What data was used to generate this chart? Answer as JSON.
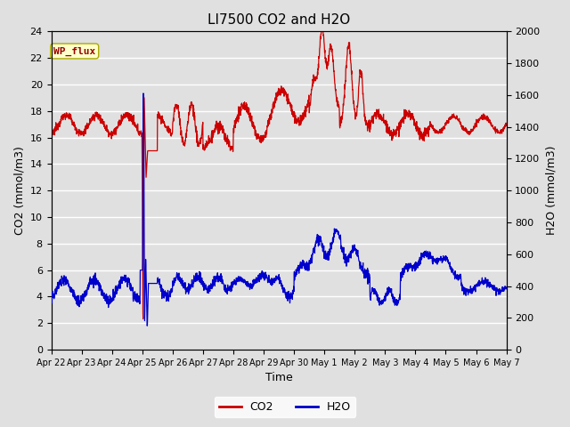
{
  "title": "LI7500 CO2 and H2O",
  "xlabel": "Time",
  "ylabel_left": "CO2 (mmol/m3)",
  "ylabel_right": "H2O (mmol/m3)",
  "ylim_left": [
    0,
    24
  ],
  "ylim_right": [
    0,
    2000
  ],
  "yticks_left": [
    0,
    2,
    4,
    6,
    8,
    10,
    12,
    14,
    16,
    18,
    20,
    22,
    24
  ],
  "yticks_right": [
    0,
    200,
    400,
    600,
    800,
    1000,
    1200,
    1400,
    1600,
    1800,
    2000
  ],
  "fig_bg_color": "#e0e0e0",
  "plot_bg_color": "#e0e0e0",
  "grid_color": "#ffffff",
  "co2_color": "#cc0000",
  "h2o_color": "#0000cc",
  "annotation_text": "WP_flux",
  "annotation_color": "#990000",
  "annotation_bg": "#ffffcc",
  "annotation_border": "#aaaa00",
  "x_tick_labels": [
    "Apr 22",
    "Apr 23",
    "Apr 24",
    "Apr 25",
    "Apr 26",
    "Apr 27",
    "Apr 28",
    "Apr 29",
    "Apr 30",
    "May 1",
    "May 2",
    "May 3",
    "May 4",
    "May 5",
    "May 6",
    "May 7"
  ],
  "legend_co2_label": "CO2",
  "legend_h2o_label": "H2O",
  "title_fontsize": 11,
  "axis_label_fontsize": 9,
  "tick_fontsize": 8,
  "xtick_fontsize": 7
}
